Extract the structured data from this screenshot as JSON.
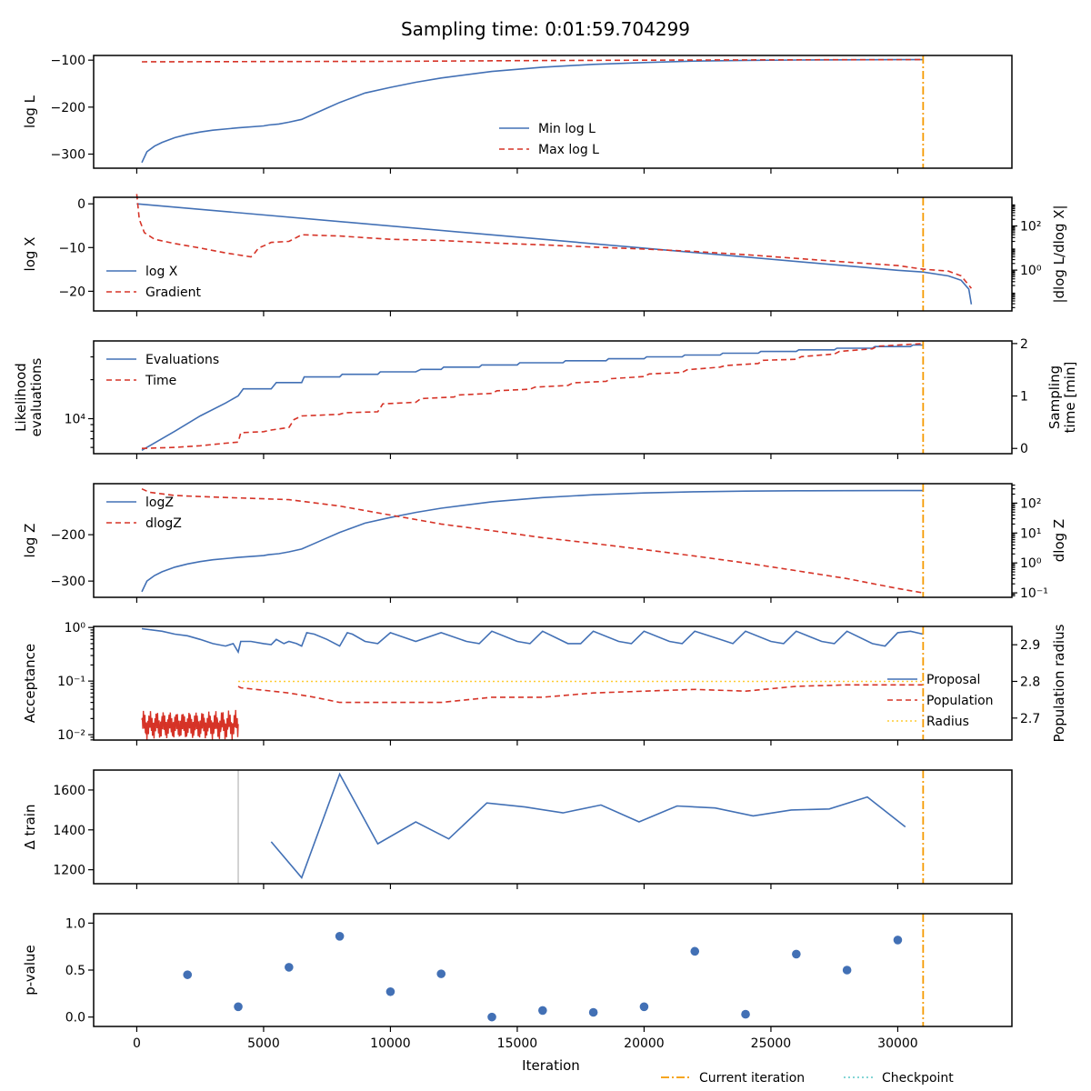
{
  "title": "Sampling time: 0:01:59.704299",
  "colors": {
    "blue": "#4270b5",
    "red": "#d63327",
    "orange": "#f59a00",
    "gold": "#ffcc33",
    "cyan": "#5bc8c8",
    "gray": "#c8c8c8"
  },
  "chart_data": [
    {
      "type": "line",
      "ylabel": "log L",
      "xlim": [
        -1700,
        34500
      ],
      "ylim": [
        -330,
        -90
      ],
      "yticks": [
        -300,
        -200,
        -100
      ],
      "yticklabels": [
        "−300",
        "−200",
        "−100"
      ],
      "series": [
        {
          "name": "Min log L",
          "x": [
            200,
            400,
            700,
            1000,
            1500,
            2000,
            2500,
            3000,
            4000,
            5000,
            5200,
            5600,
            6000,
            6500,
            7000,
            7500,
            8000,
            8500,
            9000,
            10000,
            11000,
            12000,
            14000,
            16000,
            18000,
            20000,
            22000,
            24000,
            26000,
            28000,
            30000,
            31000
          ],
          "y": [
            -318,
            -295,
            -283,
            -275,
            -265,
            -258,
            -253,
            -249,
            -244,
            -240,
            -238,
            -236,
            -232,
            -226,
            -214,
            -202,
            -190,
            -180,
            -170,
            -158,
            -147,
            -138,
            -124,
            -115,
            -109,
            -105,
            -102,
            -100.5,
            -99.6,
            -99.2,
            -99,
            -98.9
          ]
        },
        {
          "name": "Max log L",
          "x": [
            200,
            5000,
            10000,
            15000,
            20000,
            25000,
            31000
          ],
          "y": [
            -103.5,
            -103,
            -102.5,
            -101,
            -100,
            -99.3,
            -98.9
          ]
        }
      ],
      "legend": "lower-center"
    },
    {
      "type": "line",
      "ylabel": "log X",
      "ylabel_right": "|dlog L/dlog X|",
      "xlim": [
        -1700,
        34500
      ],
      "ylim": [
        -24.5,
        1.5
      ],
      "yticks": [
        -20,
        -10,
        0
      ],
      "yticklabels": [
        "−20",
        "−10",
        "0"
      ],
      "y2_log_range": [
        -1.85,
        3.3
      ],
      "y2ticks": [
        1,
        100
      ],
      "y2ticklabels": [
        "10⁰",
        "10²"
      ],
      "series": [
        {
          "name": "log X",
          "x": [
            0,
            30000,
            31000,
            32000,
            32500,
            32800,
            32900
          ],
          "y": [
            0,
            -15.2,
            -15.6,
            -16.5,
            -17.5,
            -19.5,
            -23
          ]
        },
        {
          "name": "Gradient",
          "x": [
            0,
            100,
            300,
            700,
            1500,
            2500,
            3500,
            4500,
            4600,
            4800,
            5100,
            5300,
            6000,
            6300,
            6500,
            8000,
            10000,
            12000,
            14000,
            16000,
            18000,
            20000,
            22000,
            24000,
            26000,
            28000,
            30000,
            31000,
            32000,
            32500,
            32900
          ],
          "y": [
            2800,
            200,
            50,
            25,
            16,
            10,
            6,
            4,
            5,
            10,
            14,
            18,
            20,
            30,
            40,
            35,
            25,
            22,
            17,
            14,
            11,
            9,
            7,
            5,
            3.4,
            2.3,
            1.6,
            1.1,
            0.9,
            0.55,
            0.15
          ]
        }
      ],
      "legend": "lower-left"
    },
    {
      "type": "line",
      "ylabel": "Likelihood evaluations",
      "ylabel_lines": [
        "Likelihood",
        "evaluations"
      ],
      "ylabel_right": "Sampling time [min]",
      "ylabel_right_lines": [
        "Sampling",
        "time [min]"
      ],
      "xlim": [
        -1700,
        34500
      ],
      "y_log_range": [
        3.73,
        4.6
      ],
      "yticks": [
        10000
      ],
      "yticklabels": [
        "10⁴"
      ],
      "y2lim": [
        -0.1,
        2.05
      ],
      "y2ticks": [
        0,
        1,
        2
      ],
      "y2ticklabels": [
        "0",
        "1",
        "2"
      ],
      "series": [
        {
          "name": "Evaluations",
          "x": [
            200,
            1500,
            2500,
            3500,
            4000,
            4200,
            5000,
            5300,
            5500,
            6000,
            6500,
            6600,
            7500,
            8000,
            8100,
            9500,
            9600,
            10500,
            10600,
            11000,
            11200,
            12000,
            12100,
            13500,
            13600,
            15000,
            15100,
            16800,
            16900,
            18500,
            18600,
            20000,
            20100,
            21500,
            21600,
            23000,
            23100,
            24500,
            24600,
            26000,
            26100,
            27500,
            27600,
            29000,
            29100,
            30500,
            30600,
            31000
          ],
          "y": [
            5700,
            8000,
            10500,
            13200,
            15000,
            17000,
            17000,
            17000,
            19000,
            19000,
            19000,
            21000,
            21000,
            21000,
            22000,
            22000,
            23000,
            23000,
            23000,
            23000,
            24000,
            24000,
            25000,
            25000,
            26000,
            26000,
            27000,
            27000,
            28000,
            28000,
            29000,
            29000,
            30000,
            30000,
            31000,
            31000,
            32000,
            32000,
            33000,
            33000,
            34000,
            34000,
            35000,
            35000,
            36000,
            36000,
            37000,
            37000
          ]
        },
        {
          "name": "Time",
          "x": [
            200,
            1500,
            2500,
            3500,
            4000,
            4100,
            5000,
            5300,
            6000,
            6200,
            6500,
            8000,
            8200,
            9500,
            9700,
            11000,
            11200,
            12500,
            12700,
            14000,
            14200,
            15500,
            15700,
            17000,
            17200,
            18500,
            18700,
            20000,
            20200,
            21500,
            21700,
            23000,
            23200,
            24500,
            24700,
            26000,
            26200,
            27500,
            27700,
            29000,
            29200,
            31000
          ],
          "y": [
            0,
            0.02,
            0.05,
            0.1,
            0.12,
            0.3,
            0.32,
            0.35,
            0.4,
            0.55,
            0.62,
            0.65,
            0.68,
            0.7,
            0.85,
            0.88,
            0.95,
            0.98,
            1.02,
            1.05,
            1.1,
            1.13,
            1.17,
            1.2,
            1.25,
            1.28,
            1.33,
            1.37,
            1.42,
            1.45,
            1.5,
            1.55,
            1.58,
            1.62,
            1.68,
            1.7,
            1.75,
            1.8,
            1.85,
            1.9,
            1.95,
            2.0
          ]
        }
      ],
      "legend": "upper-left"
    },
    {
      "type": "line",
      "ylabel": "log Z",
      "ylabel_right": "dlog Z",
      "xlim": [
        -1700,
        34500
      ],
      "ylim": [
        -335,
        -90
      ],
      "yticks": [
        -300,
        -200
      ],
      "yticklabels": [
        "−300",
        "−200"
      ],
      "y2_log_range": [
        -1.15,
        2.65
      ],
      "y2ticks": [
        0.1,
        1,
        10,
        100
      ],
      "y2ticklabels": [
        "10⁻¹",
        "10⁰",
        "10¹",
        "10²"
      ],
      "series": [
        {
          "name": "logZ",
          "x": [
            200,
            400,
            700,
            1000,
            1500,
            2000,
            2500,
            3000,
            4000,
            5000,
            5200,
            5600,
            6000,
            6500,
            7000,
            7500,
            8000,
            8500,
            9000,
            10000,
            11000,
            12000,
            14000,
            16000,
            18000,
            20000,
            22000,
            24000,
            26000,
            28000,
            30000,
            31000
          ],
          "y": [
            -323,
            -300,
            -288,
            -280,
            -270,
            -263,
            -258,
            -254,
            -249,
            -245,
            -243,
            -241,
            -237,
            -231,
            -219,
            -207,
            -195,
            -185,
            -175,
            -163,
            -152,
            -143,
            -129,
            -120,
            -114,
            -110,
            -107.5,
            -106,
            -105.3,
            -105,
            -104.9,
            -104.8
          ]
        },
        {
          "name": "dlogZ",
          "x": [
            200,
            500,
            1500,
            3000,
            5000,
            6000,
            8000,
            10000,
            12000,
            14000,
            16000,
            18000,
            20000,
            22000,
            24000,
            26000,
            28000,
            30000,
            31000
          ],
          "y": [
            300,
            230,
            180,
            160,
            140,
            130,
            80,
            40,
            20,
            12,
            7,
            4.5,
            2.8,
            1.7,
            1.0,
            0.55,
            0.3,
            0.14,
            0.1
          ]
        }
      ],
      "legend": "upper-left"
    },
    {
      "type": "line",
      "ylabel": "Acceptance",
      "ylabel_right": "Population radius",
      "xlim": [
        -1700,
        34500
      ],
      "y_log_range": [
        -2.1,
        0.02
      ],
      "yticks": [
        0.01,
        0.1,
        1
      ],
      "yticklabels": [
        "10⁻²",
        "10⁻¹",
        "10⁰"
      ],
      "y2lim": [
        2.64,
        2.95
      ],
      "y2ticks": [
        2.7,
        2.8,
        2.9
      ],
      "y2ticklabels": [
        "2.7",
        "2.8",
        "2.9"
      ],
      "series": [
        {
          "name": "Proposal",
          "x": [
            200,
            1000,
            1500,
            2000,
            2500,
            3000,
            3500,
            3800,
            4000,
            4100,
            4500,
            5000,
            5300,
            5500,
            5800,
            6000,
            6300,
            6500,
            6700,
            7000,
            7500,
            8000,
            8300,
            8500,
            9000,
            9500,
            10000,
            11000,
            12000,
            13000,
            13500,
            14000,
            15000,
            15500,
            16000,
            17000,
            17500,
            18000,
            19000,
            19500,
            20000,
            21000,
            21500,
            22000,
            23000,
            23500,
            24000,
            25000,
            25500,
            26000,
            27000,
            27500,
            28000,
            29000,
            29500,
            30000,
            30500,
            31000
          ],
          "y": [
            0.95,
            0.85,
            0.75,
            0.7,
            0.6,
            0.5,
            0.45,
            0.5,
            0.35,
            0.55,
            0.55,
            0.5,
            0.48,
            0.6,
            0.5,
            0.55,
            0.5,
            0.45,
            0.8,
            0.75,
            0.6,
            0.45,
            0.8,
            0.75,
            0.55,
            0.5,
            0.8,
            0.55,
            0.8,
            0.55,
            0.5,
            0.85,
            0.55,
            0.5,
            0.85,
            0.5,
            0.5,
            0.85,
            0.55,
            0.5,
            0.85,
            0.55,
            0.5,
            0.85,
            0.6,
            0.5,
            0.85,
            0.55,
            0.5,
            0.85,
            0.55,
            0.5,
            0.85,
            0.5,
            0.45,
            0.8,
            0.85,
            0.75
          ]
        },
        {
          "name": "Population",
          "x": [
            4000,
            4100,
            6000,
            7000,
            8000,
            10000,
            12000,
            14000,
            16000,
            18000,
            20000,
            22000,
            24000,
            26000,
            28000,
            30000,
            31000
          ],
          "y": [
            0.08,
            0.075,
            0.06,
            0.05,
            0.04,
            0.04,
            0.04,
            0.05,
            0.05,
            0.06,
            0.065,
            0.07,
            0.065,
            0.08,
            0.085,
            0.085,
            0.085
          ]
        },
        {
          "name": "Radius",
          "x": [
            4000,
            31000
          ],
          "y": [
            2.8,
            2.8
          ],
          "axis": "right"
        }
      ],
      "legend": "center-right"
    },
    {
      "type": "line",
      "ylabel": "Δ train",
      "xlim": [
        -1700,
        34500
      ],
      "ylim": [
        1130,
        1700
      ],
      "yticks": [
        1200,
        1400,
        1600
      ],
      "yticklabels": [
        "1200",
        "1400",
        "1600"
      ],
      "series": [
        {
          "x": [
            5300,
            6500,
            8000,
            9500,
            11000,
            12300,
            13800,
            15300,
            16800,
            18300,
            19800,
            21300,
            22800,
            24300,
            25800,
            27300,
            28800,
            30300
          ],
          "y": [
            1340,
            1160,
            1680,
            1330,
            1440,
            1355,
            1535,
            1515,
            1485,
            1525,
            1440,
            1520,
            1510,
            1470,
            1500,
            1505,
            1565,
            1415
          ]
        }
      ]
    },
    {
      "type": "scatter",
      "ylabel": "p-value",
      "xlabel": "Iteration",
      "xlim": [
        -1700,
        34500
      ],
      "ylim": [
        -0.1,
        1.1
      ],
      "yticks": [
        0,
        0.5,
        1
      ],
      "yticklabels": [
        "0.0",
        "0.5",
        "1.0"
      ],
      "xticks": [
        0,
        5000,
        10000,
        15000,
        20000,
        25000,
        30000
      ],
      "xticklabels": [
        "0",
        "5000",
        "10000",
        "15000",
        "20000",
        "25000",
        "30000"
      ],
      "series": [
        {
          "x": [
            2000,
            4000,
            6000,
            8000,
            10000,
            12000,
            14000,
            16000,
            18000,
            20000,
            22000,
            24000,
            26000,
            28000,
            30000
          ],
          "y": [
            0.45,
            0.11,
            0.53,
            0.86,
            0.27,
            0.46,
            0.0,
            0.07,
            0.05,
            0.11,
            0.7,
            0.03,
            0.67,
            0.5,
            0.82
          ]
        }
      ]
    }
  ],
  "current_iteration": 31000,
  "checkpoint_iteration": 4000,
  "figure_legend": {
    "current": "Current iteration",
    "checkpoint": "Checkpoint"
  }
}
